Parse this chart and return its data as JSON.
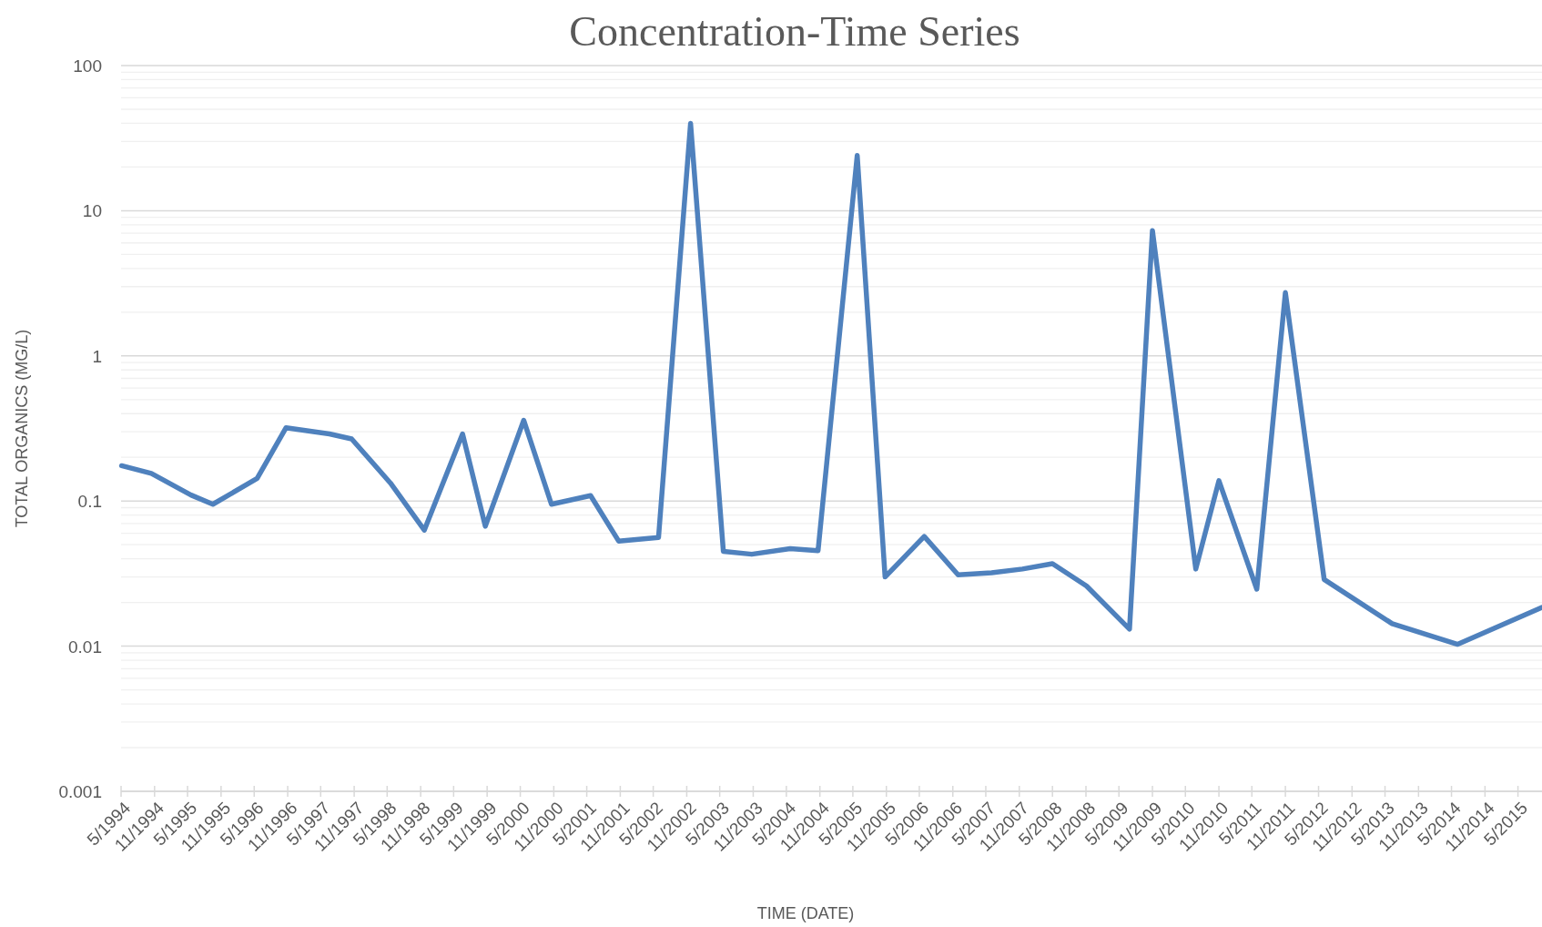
{
  "chart_data": {
    "type": "line",
    "title": "Concentration-Time Series",
    "xlabel": "TIME (DATE)",
    "ylabel": "TOTAL ORGANICS (MG/L)",
    "x": [
      "1994-05-04",
      "1994-10-14",
      "1995-05-20",
      "1995-09-17",
      "1996-05-17",
      "1996-10-23",
      "1997-06-18",
      "1997-10-18",
      "1998-05-19",
      "1998-11-21",
      "1999-06-19",
      "1999-10-22",
      "2000-05-20",
      "2000-10-19",
      "2001-05-22",
      "2001-10-23",
      "2002-05-30",
      "2002-11-22",
      "2003-05-21",
      "2003-10-24",
      "2004-05-22",
      "2004-10-22",
      "2005-05-25",
      "2005-10-25",
      "2006-05-28",
      "2006-11-30",
      "2007-06-02",
      "2007-11-18",
      "2008-05-01",
      "2008-11-04",
      "2009-06-28",
      "2009-11-01",
      "2010-06-27",
      "2010-11-01",
      "2011-05-28",
      "2011-11-01",
      "2012-06-01",
      "2013-06-09",
      "2014-06-04",
      "2015-09-10"
    ],
    "series": [
      {
        "color": "#4f81bd",
        "values": [
          0.175,
          0.155,
          0.11,
          0.095,
          0.143,
          0.32,
          0.29,
          0.268,
          0.133,
          0.063,
          0.29,
          0.067,
          0.36,
          0.095,
          0.109,
          0.053,
          0.056,
          40,
          0.045,
          0.043,
          0.047,
          0.0455,
          24,
          0.03,
          0.057,
          0.031,
          0.032,
          0.034,
          0.037,
          0.026,
          0.0131,
          7.3,
          0.034,
          0.138,
          0.0247,
          2.73,
          0.0288,
          0.0143,
          0.0103,
          0.0185
        ]
      }
    ],
    "xlim": [
      "1994-05-01",
      "2015-09-10"
    ],
    "xticks": [
      {
        "value": "1994-05",
        "label": "5/1994"
      },
      {
        "value": "1994-11",
        "label": "11/1994"
      },
      {
        "value": "1995-05",
        "label": "5/1995"
      },
      {
        "value": "1995-11",
        "label": "11/1995"
      },
      {
        "value": "1996-05",
        "label": "5/1996"
      },
      {
        "value": "1996-11",
        "label": "11/1996"
      },
      {
        "value": "1997-05",
        "label": "5/1997"
      },
      {
        "value": "1997-11",
        "label": "11/1997"
      },
      {
        "value": "1998-05",
        "label": "5/1998"
      },
      {
        "value": "1998-11",
        "label": "11/1998"
      },
      {
        "value": "1999-05",
        "label": "5/1999"
      },
      {
        "value": "1999-11",
        "label": "11/1999"
      },
      {
        "value": "2000-05",
        "label": "5/2000"
      },
      {
        "value": "2000-11",
        "label": "11/2000"
      },
      {
        "value": "2001-05",
        "label": "5/2001"
      },
      {
        "value": "2001-11",
        "label": "11/2001"
      },
      {
        "value": "2002-05",
        "label": "5/2002"
      },
      {
        "value": "2002-11",
        "label": "11/2002"
      },
      {
        "value": "2003-05",
        "label": "5/2003"
      },
      {
        "value": "2003-11",
        "label": "11/2003"
      },
      {
        "value": "2004-05",
        "label": "5/2004"
      },
      {
        "value": "2004-11",
        "label": "11/2004"
      },
      {
        "value": "2005-05",
        "label": "5/2005"
      },
      {
        "value": "2005-11",
        "label": "11/2005"
      },
      {
        "value": "2006-05",
        "label": "5/2006"
      },
      {
        "value": "2006-11",
        "label": "11/2006"
      },
      {
        "value": "2007-05",
        "label": "5/2007"
      },
      {
        "value": "2007-11",
        "label": "11/2007"
      },
      {
        "value": "2008-05",
        "label": "5/2008"
      },
      {
        "value": "2008-11",
        "label": "11/2008"
      },
      {
        "value": "2009-05",
        "label": "5/2009"
      },
      {
        "value": "2009-11",
        "label": "11/2009"
      },
      {
        "value": "2010-05",
        "label": "5/2010"
      },
      {
        "value": "2010-11",
        "label": "11/2010"
      },
      {
        "value": "2011-05",
        "label": "5/2011"
      },
      {
        "value": "2011-11",
        "label": "11/2011"
      },
      {
        "value": "2012-05",
        "label": "5/2012"
      },
      {
        "value": "2012-11",
        "label": "11/2012"
      },
      {
        "value": "2013-05",
        "label": "5/2013"
      },
      {
        "value": "2013-11",
        "label": "11/2013"
      },
      {
        "value": "2014-05",
        "label": "5/2014"
      },
      {
        "value": "2014-11",
        "label": "11/2014"
      },
      {
        "value": "2015-05",
        "label": "5/2015"
      }
    ],
    "ylim": [
      0.001,
      100
    ],
    "yticks": [
      0.001,
      0.01,
      0.1,
      1,
      10,
      100
    ],
    "log": "y",
    "grid": "y",
    "line_style": "solid"
  }
}
